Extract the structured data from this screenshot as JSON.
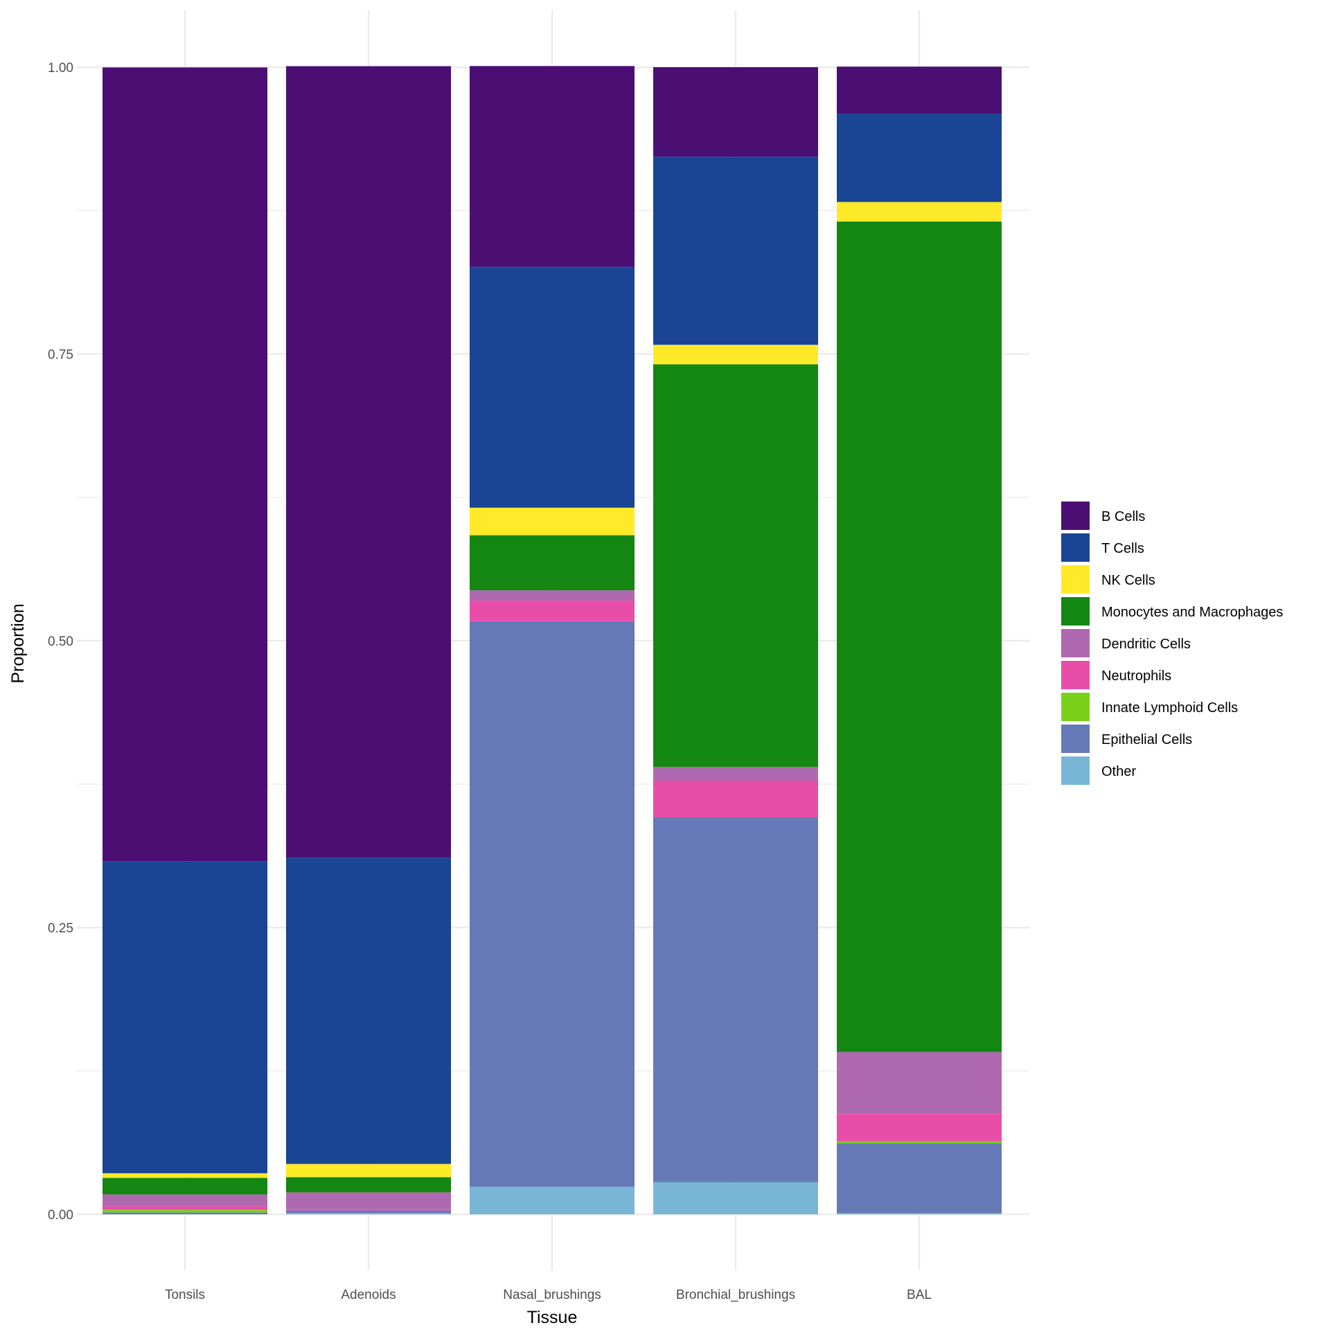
{
  "chart_data": {
    "type": "bar",
    "stacked": true,
    "title": "",
    "xlabel": "Tissue",
    "ylabel": "Proportion",
    "ylim": [
      0,
      1
    ],
    "yticks": [
      "0.00",
      "0.25",
      "0.50",
      "0.75",
      "1.00"
    ],
    "grid": true,
    "legend_position": "right",
    "categories": [
      "Tonsils",
      "Adenoids",
      "Nasal_brushings",
      "Bronchial_brushings",
      "BAL"
    ],
    "stack_order_bottom_to_top": [
      "Other",
      "Epithelial Cells",
      "Innate Lymphoid Cells",
      "Neutrophils",
      "Dendritic Cells",
      "Monocytes and Macrophages",
      "NK Cells",
      "T Cells",
      "B Cells"
    ],
    "series": [
      {
        "name": "B Cells",
        "color": "#4B0F74",
        "values": [
          0.692,
          0.69,
          0.175,
          0.078,
          0.041
        ]
      },
      {
        "name": "T Cells",
        "color": "#1A4494",
        "values": [
          0.272,
          0.267,
          0.21,
          0.164,
          0.077
        ]
      },
      {
        "name": "NK Cells",
        "color": "#FFEA29",
        "values": [
          0.004,
          0.0115,
          0.024,
          0.017,
          0.017
        ]
      },
      {
        "name": "Monocytes and Macrophages",
        "color": "#138711",
        "values": [
          0.0145,
          0.0133,
          0.048,
          0.351,
          0.724
        ]
      },
      {
        "name": "Dendritic Cells",
        "color": "#AF69B0",
        "values": [
          0.0103,
          0.0147,
          0.009,
          0.012,
          0.054
        ]
      },
      {
        "name": "Neutrophils",
        "color": "#E84EA8",
        "values": [
          0.003,
          0.001,
          0.018,
          0.032,
          0.024
        ]
      },
      {
        "name": "Innate Lymphoid Cells",
        "color": "#7BD119",
        "values": [
          0.0024,
          0.0,
          0.0,
          0.0,
          0.0015
        ]
      },
      {
        "name": "Epithelial Cells",
        "color": "#6579B7",
        "values": [
          0.0016,
          0.0024,
          0.493,
          0.318,
          0.061
        ]
      },
      {
        "name": "Other",
        "color": "#79B6D6",
        "values": [
          0.0,
          0.001,
          0.024,
          0.028,
          0.001
        ]
      }
    ]
  }
}
